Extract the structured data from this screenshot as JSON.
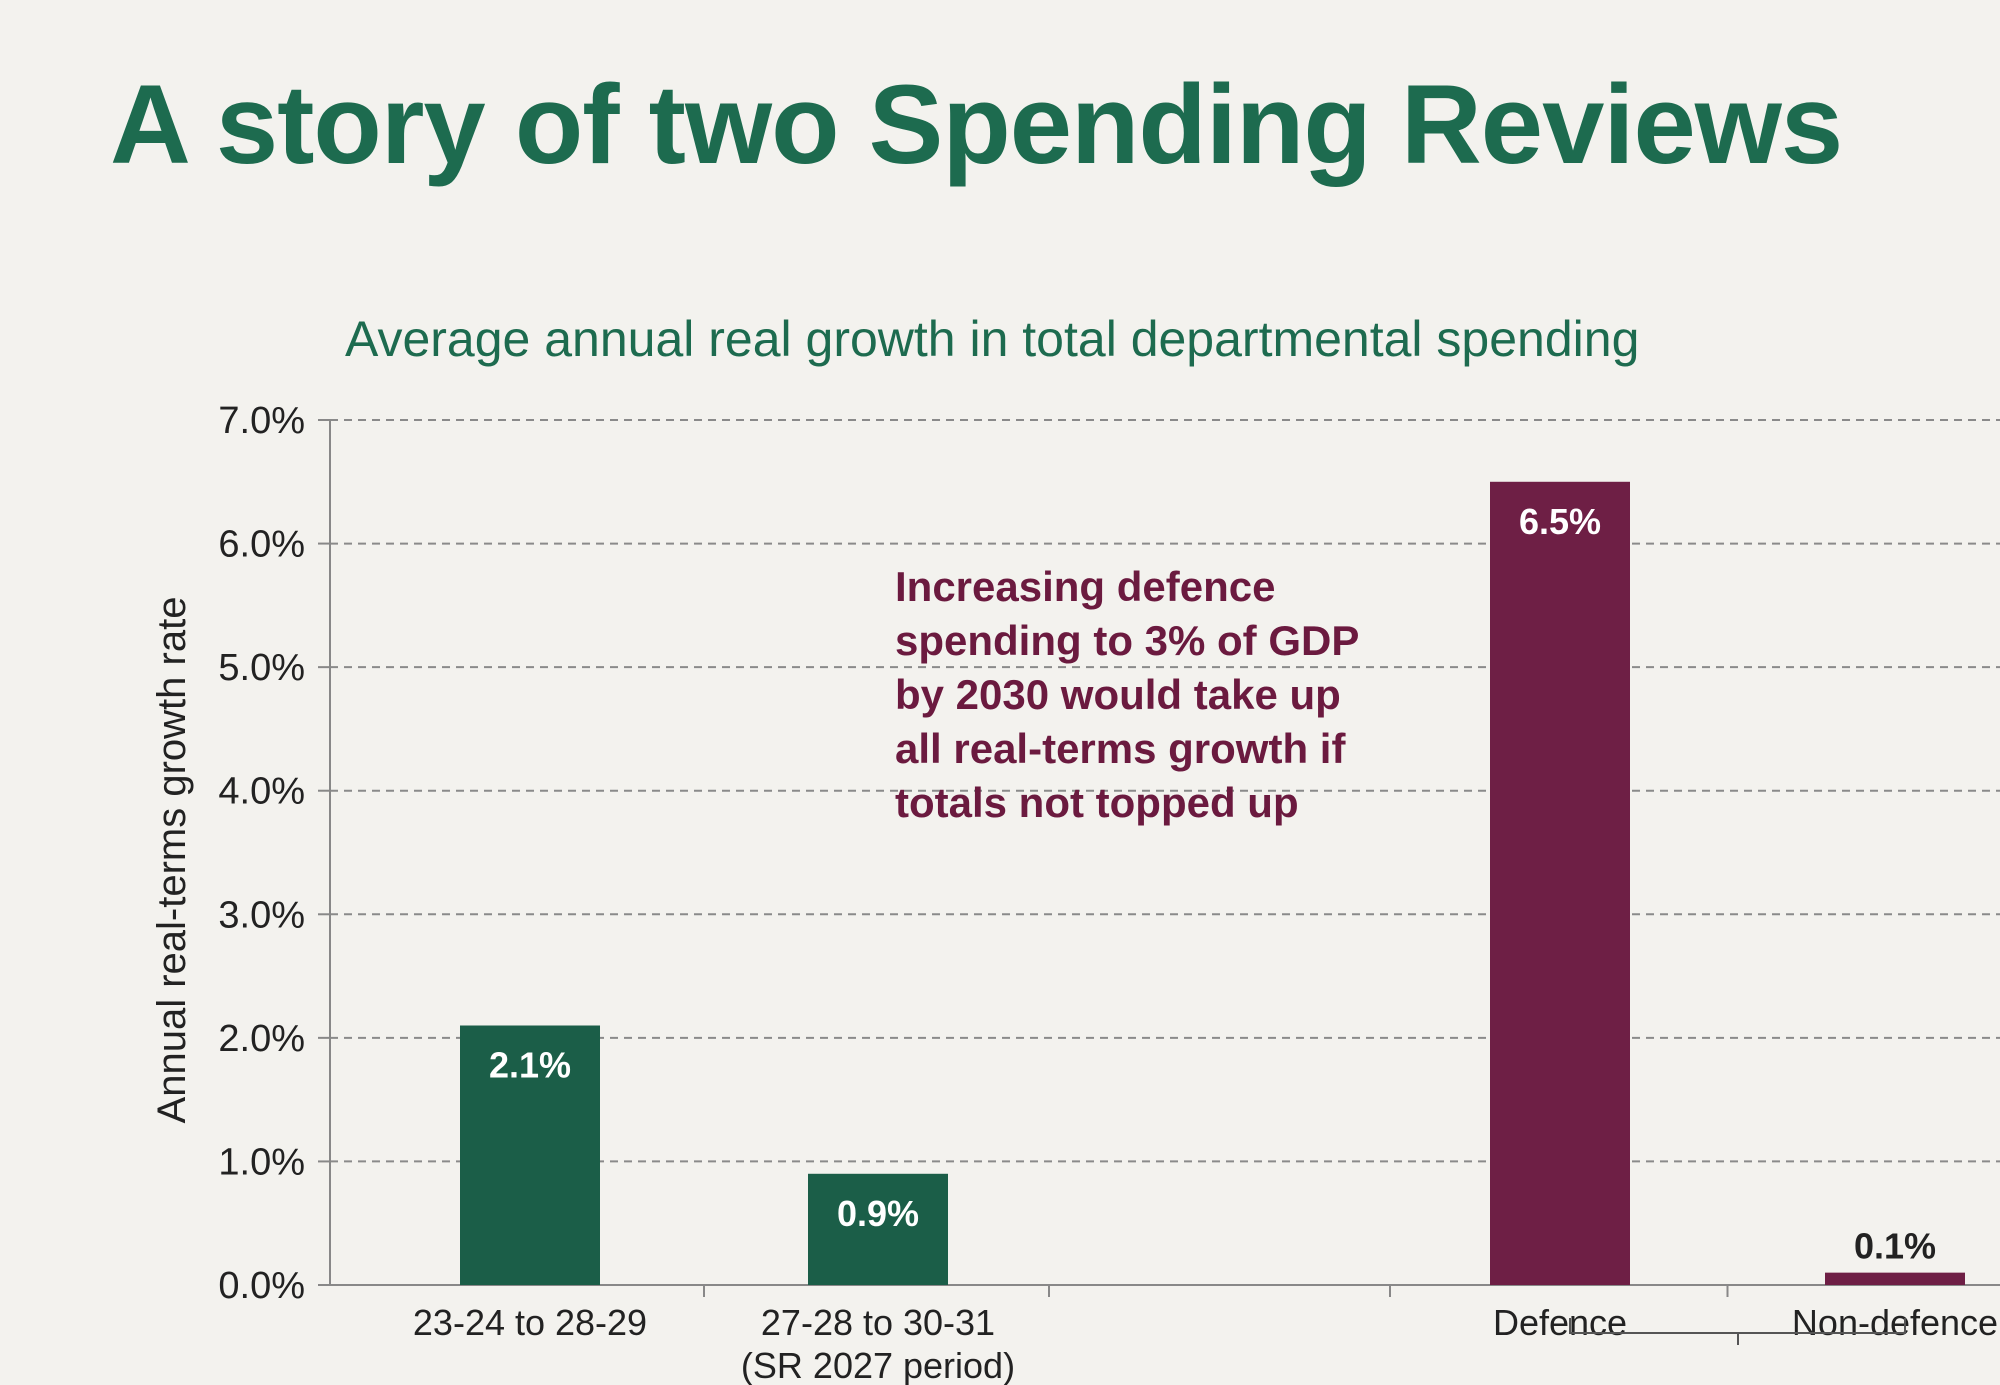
{
  "slide": {
    "title": "A story of two Spending Reviews",
    "annotation_lines": [
      "Increasing defence",
      "spending to 3% of GDP",
      "by 2030 would take up",
      "all real-terms growth if",
      "totals not topped up"
    ]
  },
  "chart_data": {
    "type": "bar",
    "title": "Average annual real growth in total departmental spending",
    "xlabel": "",
    "ylabel": "Annual real-terms growth rate",
    "ylim": [
      0,
      7
    ],
    "yticks": [
      "0.0%",
      "1.0%",
      "2.0%",
      "3.0%",
      "4.0%",
      "5.0%",
      "6.0%",
      "7.0%"
    ],
    "grid": true,
    "categories": [
      {
        "label": "23-24 to 28-29",
        "sublabel": ""
      },
      {
        "label": "27-28 to 30-31",
        "sublabel": "(SR 2027 period)"
      },
      {
        "label": "",
        "sublabel": ""
      },
      {
        "label": "Defence",
        "sublabel": ""
      },
      {
        "label": "Non-defence",
        "sublabel": ""
      }
    ],
    "values": [
      2.1,
      0.9,
      null,
      6.5,
      0.1
    ],
    "data_labels": [
      "2.1%",
      "0.9%",
      "",
      "6.5%",
      "0.1%"
    ],
    "bar_colors": [
      "#1b5e48",
      "#1b5e48",
      null,
      "#6e1f45",
      "#6e1f45"
    ],
    "bracket": "Defence + Non-defence"
  }
}
